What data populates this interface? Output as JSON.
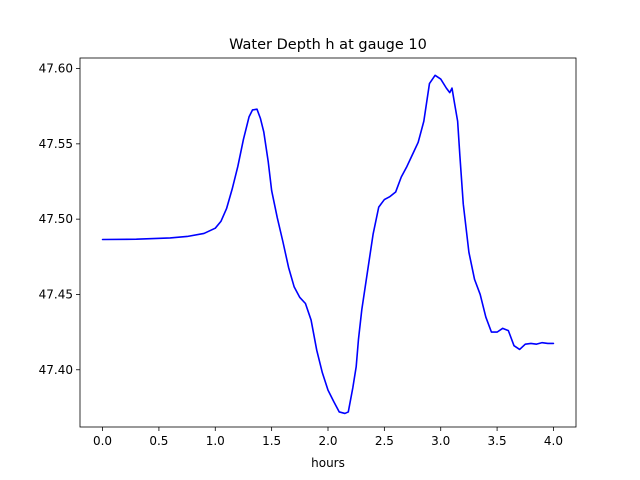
{
  "chart_data": {
    "type": "line",
    "title": "Water Depth h at gauge 10",
    "xlabel": "hours",
    "ylabel": "",
    "xlim": [
      -0.2,
      4.2
    ],
    "ylim": [
      47.362,
      47.607
    ],
    "x_ticks": [
      {
        "value": 0.0,
        "label": "0.0"
      },
      {
        "value": 0.5,
        "label": "0.5"
      },
      {
        "value": 1.0,
        "label": "1.0"
      },
      {
        "value": 1.5,
        "label": "1.5"
      },
      {
        "value": 2.0,
        "label": "2.0"
      },
      {
        "value": 2.5,
        "label": "2.5"
      },
      {
        "value": 3.0,
        "label": "3.0"
      },
      {
        "value": 3.5,
        "label": "3.5"
      },
      {
        "value": 4.0,
        "label": "4.0"
      }
    ],
    "y_ticks": [
      {
        "value": 47.4,
        "label": "47.40"
      },
      {
        "value": 47.45,
        "label": "47.45"
      },
      {
        "value": 47.5,
        "label": "47.50"
      },
      {
        "value": 47.55,
        "label": "47.55"
      },
      {
        "value": 47.6,
        "label": "47.60"
      }
    ],
    "grid": false,
    "series": [
      {
        "color": "#0000ff",
        "x": [
          0.0,
          0.3,
          0.6,
          0.75,
          0.9,
          1.0,
          1.05,
          1.1,
          1.15,
          1.2,
          1.25,
          1.3,
          1.33,
          1.37,
          1.4,
          1.43,
          1.47,
          1.5,
          1.55,
          1.6,
          1.65,
          1.7,
          1.75,
          1.8,
          1.85,
          1.9,
          1.95,
          2.0,
          2.05,
          2.1,
          2.15,
          2.18,
          2.22,
          2.25,
          2.27,
          2.3,
          2.35,
          2.4,
          2.45,
          2.5,
          2.55,
          2.6,
          2.65,
          2.7,
          2.75,
          2.8,
          2.85,
          2.9,
          2.95,
          3.0,
          3.05,
          3.08,
          3.1,
          3.12,
          3.15,
          3.17,
          3.2,
          3.25,
          3.3,
          3.35,
          3.4,
          3.45,
          3.5,
          3.55,
          3.6,
          3.65,
          3.7,
          3.75,
          3.8,
          3.85,
          3.9,
          3.95,
          4.0
        ],
        "y": [
          47.4865,
          47.4867,
          47.4875,
          47.4885,
          47.4905,
          47.494,
          47.4985,
          47.507,
          47.52,
          47.535,
          47.553,
          47.568,
          47.5725,
          47.573,
          47.567,
          47.558,
          47.538,
          47.519,
          47.501,
          47.485,
          47.468,
          47.455,
          47.448,
          47.444,
          47.433,
          47.413,
          47.398,
          47.3865,
          47.379,
          47.372,
          47.371,
          47.372,
          47.388,
          47.402,
          47.42,
          47.44,
          47.465,
          47.49,
          47.508,
          47.513,
          47.515,
          47.518,
          47.528,
          47.535,
          47.543,
          47.551,
          47.565,
          47.59,
          47.5955,
          47.593,
          47.587,
          47.584,
          47.587,
          47.578,
          47.565,
          47.542,
          47.51,
          47.478,
          47.46,
          47.45,
          47.435,
          47.425,
          47.425,
          47.4275,
          47.426,
          47.416,
          47.4135,
          47.417,
          47.4175,
          47.417,
          47.418,
          47.4175,
          47.4175
        ]
      }
    ]
  }
}
